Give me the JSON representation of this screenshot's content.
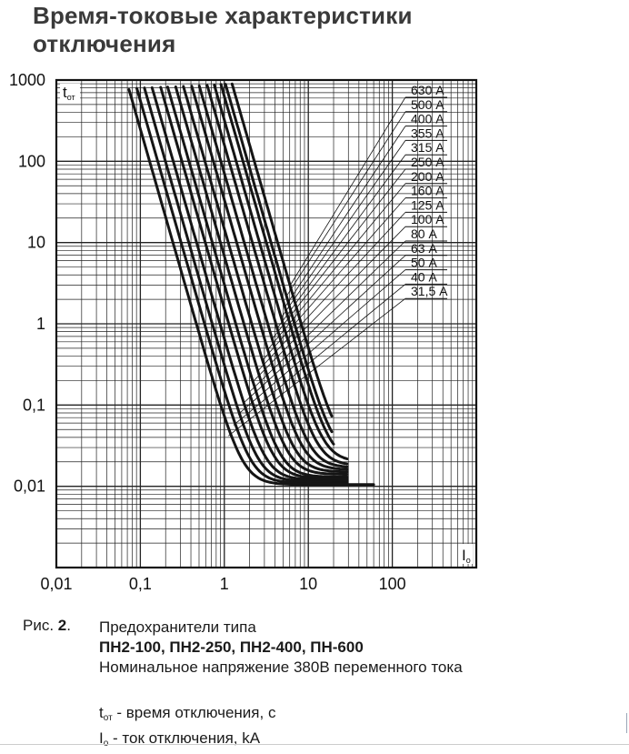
{
  "title_line1": "Время-токовые характеристики",
  "title_line2": "отключения",
  "chart_data": {
    "type": "line",
    "xscale": "log",
    "yscale": "log",
    "xlim": [
      0.01,
      1000
    ],
    "ylim": [
      0.001,
      1000
    ],
    "xticks": [
      "0,01",
      "0,1",
      "1",
      "10",
      "100"
    ],
    "yticks": [
      "1000",
      "100",
      "10",
      "1",
      "0,1",
      "0,01"
    ],
    "ylabel_main": "t",
    "ylabel_sub": "от",
    "xlabel_main": "I",
    "xlabel_sub": "о",
    "grid": true,
    "series": [
      {
        "name": "31,5 А",
        "slope": 3.6,
        "anchor_x": 0.068,
        "floor": 0.0105,
        "x_end": 60
      },
      {
        "name": "40 А",
        "slope": 3.6,
        "anchor_x": 0.085,
        "floor": 0.011,
        "x_end": 29
      },
      {
        "name": "50 А",
        "slope": 3.6,
        "anchor_x": 0.105,
        "floor": 0.0115,
        "x_end": 29
      },
      {
        "name": "63 А",
        "slope": 3.6,
        "anchor_x": 0.13,
        "floor": 0.012,
        "x_end": 29
      },
      {
        "name": "80 А",
        "slope": 3.6,
        "anchor_x": 0.165,
        "floor": 0.0125,
        "x_end": 29
      },
      {
        "name": "100 А",
        "slope": 3.6,
        "anchor_x": 0.2,
        "floor": 0.013,
        "x_end": 29
      },
      {
        "name": "125 А",
        "slope": 3.6,
        "anchor_x": 0.25,
        "floor": 0.014,
        "x_end": 29
      },
      {
        "name": "160 А",
        "slope": 3.6,
        "anchor_x": 0.31,
        "floor": 0.015,
        "x_end": 29
      },
      {
        "name": "200 А",
        "slope": 3.6,
        "anchor_x": 0.39,
        "floor": 0.016,
        "x_end": 29
      },
      {
        "name": "250 А",
        "slope": 3.6,
        "anchor_x": 0.48,
        "floor": 0.017,
        "x_end": 29
      },
      {
        "name": "315 А",
        "slope": 3.6,
        "anchor_x": 0.6,
        "floor": 0.018,
        "x_end": 29
      },
      {
        "name": "355 А",
        "slope": 3.6,
        "anchor_x": 0.73,
        "floor": 0.02,
        "x_end": 29
      },
      {
        "name": "400 А",
        "slope": 3.6,
        "anchor_x": 0.88,
        "floor": 0.02,
        "x_end": 20
      },
      {
        "name": "500 А",
        "slope": 3.6,
        "anchor_x": 1.0,
        "floor": 0.022,
        "x_end": 19
      },
      {
        "name": "630 А",
        "slope": 3.6,
        "anchor_x": 1.2,
        "floor": 0.025,
        "x_end": 19
      }
    ]
  },
  "caption": {
    "fig_prefix": "Рис. ",
    "fig_number": "2",
    "fig_suffix": ".",
    "line1": "Предохранители типа",
    "line2": "ПН2-100, ПН2-250, ПН2-400, ПН-600",
    "line3": "Номинальное напряжение 380В переменного тока",
    "legend_t_main": "t",
    "legend_t_sub": "от",
    "legend_t_text": " - время отключения, с",
    "legend_i_main": "I",
    "legend_i_sub": "о",
    "legend_i_text": " - ток отключения, kA"
  }
}
